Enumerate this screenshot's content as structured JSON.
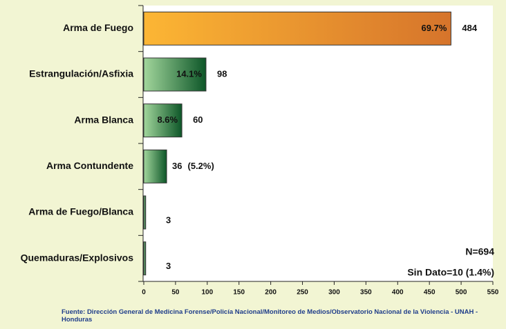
{
  "chart_data": {
    "type": "bar",
    "orientation": "horizontal",
    "categories": [
      "Arma de Fuego",
      "Estrangulación/Asfixia",
      "Arma Blanca",
      "Arma Contundente",
      "Arma de Fuego/Blanca",
      "Quemaduras/Explosivos"
    ],
    "values": [
      484,
      98,
      60,
      36,
      3,
      3
    ],
    "percentage_labels": [
      "69.7%",
      "14.1%",
      "8.6%",
      "(5.2%)",
      null,
      null
    ],
    "color_gradients": [
      [
        "#fcb634",
        "#d6742b"
      ],
      [
        "#a2d69c",
        "#0d5628"
      ],
      [
        "#a2d69c",
        "#0d5628"
      ],
      [
        "#a2d69c",
        "#0d5628"
      ],
      [
        "#a2d69c",
        "#0d5628"
      ],
      [
        "#a2d69c",
        "#0d5628"
      ]
    ],
    "xlim": [
      0,
      550
    ],
    "xticks": [
      0,
      50,
      100,
      150,
      200,
      250,
      300,
      350,
      400,
      450,
      500,
      550
    ],
    "annotations": [
      "N=694",
      "Sin Dato=10 (1.4%)"
    ],
    "source": "Fuente: Dirección General de Medicina Forense/Policía Nacional/Monitoreo de Medios/Observatorio Nacional de la Violencia - UNAH - Honduras"
  }
}
